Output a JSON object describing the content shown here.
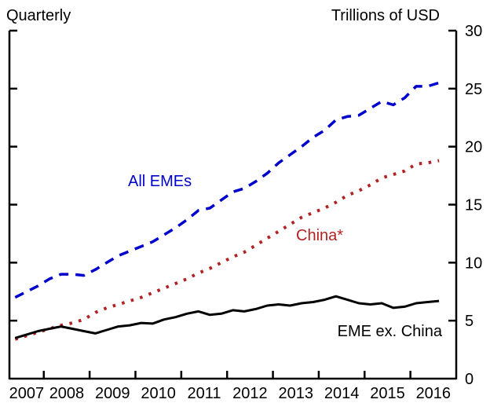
{
  "chart_data": {
    "type": "line",
    "title": "",
    "left_header": "Quarterly",
    "right_header": "Trillions of USD",
    "xlabel": "",
    "ylabel": "Trillions of USD",
    "ylim": [
      0,
      30
    ],
    "yticks": [
      0,
      5,
      10,
      15,
      20,
      25,
      30
    ],
    "ytick_labels": [
      "0",
      "5",
      "10",
      "15",
      "20",
      "25",
      "30"
    ],
    "xlim": [
      2007.25,
      2017.0
    ],
    "xticks_year_boundaries": [
      2008,
      2009,
      2010,
      2011,
      2012,
      2013,
      2014,
      2015,
      2016
    ],
    "xtick_labels": [
      "2007",
      "2008",
      "2009",
      "2010",
      "2011",
      "2012",
      "2013",
      "2014",
      "2015",
      "2016"
    ],
    "grid": false,
    "legend": "inline labels",
    "x": [
      2007.375,
      2007.625,
      2007.875,
      2008.125,
      2008.375,
      2008.625,
      2008.875,
      2009.125,
      2009.375,
      2009.625,
      2009.875,
      2010.125,
      2010.375,
      2010.625,
      2010.875,
      2011.125,
      2011.375,
      2011.625,
      2011.875,
      2012.125,
      2012.375,
      2012.625,
      2012.875,
      2013.125,
      2013.375,
      2013.625,
      2013.875,
      2014.125,
      2014.375,
      2014.625,
      2014.875,
      2015.125,
      2015.375,
      2015.625,
      2015.875,
      2016.125,
      2016.375,
      2016.625
    ],
    "series": [
      {
        "name": "All EMEs",
        "color": "#0000cc",
        "style": "dashed",
        "label_position": "upper-left",
        "values": [
          7.0,
          7.5,
          8.0,
          8.6,
          9.0,
          9.0,
          8.9,
          9.4,
          10.0,
          10.6,
          11.0,
          11.4,
          11.8,
          12.4,
          13.0,
          13.7,
          14.5,
          14.7,
          15.4,
          16.1,
          16.4,
          17.0,
          17.7,
          18.6,
          19.3,
          20.0,
          20.8,
          21.4,
          22.3,
          22.6,
          22.7,
          23.3,
          23.9,
          23.6,
          24.2,
          25.2,
          25.2,
          25.5
        ]
      },
      {
        "name": "China*",
        "color": "#b22222",
        "style": "dotted",
        "label_position": "middle-right",
        "values": [
          3.4,
          3.7,
          4.0,
          4.3,
          4.6,
          4.8,
          5.1,
          5.7,
          6.1,
          6.4,
          6.7,
          7.0,
          7.4,
          7.8,
          8.2,
          8.6,
          9.1,
          9.5,
          10.0,
          10.5,
          10.9,
          11.5,
          12.1,
          12.7,
          13.3,
          13.9,
          14.3,
          14.7,
          15.2,
          15.8,
          16.2,
          16.7,
          17.3,
          17.6,
          17.9,
          18.5,
          18.6,
          18.8
        ]
      },
      {
        "name": "EME ex. China",
        "color": "#000000",
        "style": "solid",
        "label_position": "lower-right",
        "values": [
          3.5,
          3.8,
          4.1,
          4.3,
          4.5,
          4.3,
          4.1,
          3.9,
          4.2,
          4.5,
          4.6,
          4.8,
          4.75,
          5.1,
          5.3,
          5.6,
          5.8,
          5.5,
          5.6,
          5.9,
          5.8,
          6.0,
          6.3,
          6.4,
          6.3,
          6.5,
          6.6,
          6.8,
          7.1,
          6.8,
          6.5,
          6.4,
          6.5,
          6.1,
          6.2,
          6.5,
          6.6,
          6.7
        ]
      }
    ]
  }
}
